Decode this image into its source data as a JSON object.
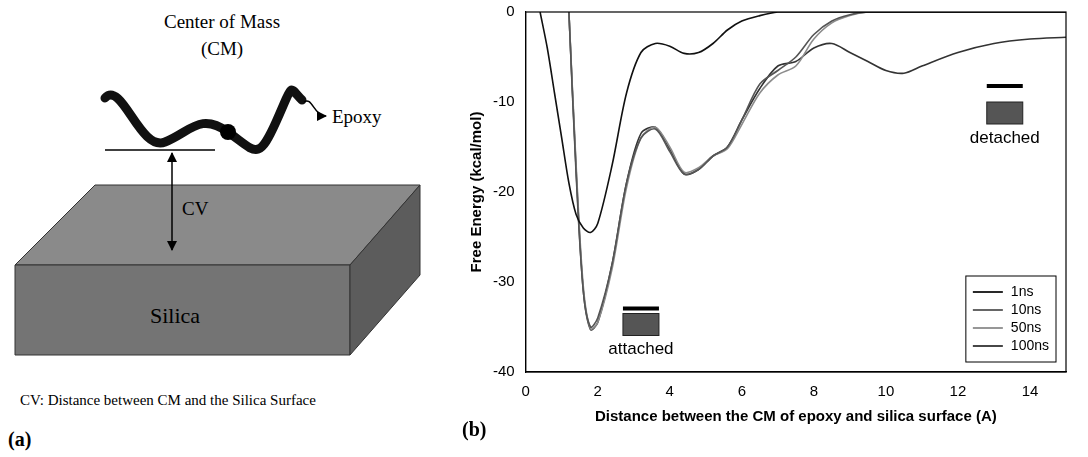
{
  "diagram": {
    "label": "(a)",
    "center_label": [
      "Center of Mass",
      "(CM)"
    ],
    "epoxy_label": "Epoxy",
    "cv_label": "CV",
    "slab_label": "Silica",
    "caption": "CV: Distance between CM and the Silica Surface"
  },
  "chart_data": {
    "type": "line",
    "panel_label": "(b)",
    "x_label": "Distance between the CM of epoxy and silica surface (A)",
    "y_label": "Free Energy (kcal/mol)",
    "x": [
      0.4,
      0.6,
      0.8,
      1.0,
      1.2,
      1.4,
      1.6,
      1.8,
      2.0,
      2.4,
      2.8,
      3.2,
      3.6,
      4.0,
      4.4,
      4.8,
      5.2,
      5.6,
      6.0,
      6.5,
      7.0,
      7.5,
      8.0,
      8.5,
      9.0,
      9.5,
      10.0,
      10.5,
      11.0,
      12.0,
      13.0,
      14.0,
      15.0
    ],
    "series": [
      {
        "name": "1ns",
        "color": "#111111",
        "values": [
          0,
          -4,
          -9,
          -14,
          -19,
          -22.5,
          -24,
          -24.5,
          -23.5,
          -17,
          -9,
          -4.5,
          -3.5,
          -3.8,
          -4.6,
          -4.5,
          -3.5,
          -2,
          -1,
          -0.4,
          0,
          0,
          0,
          0,
          0,
          0,
          0,
          0,
          0,
          0,
          0,
          0,
          0
        ]
      },
      {
        "name": "10ns",
        "color": "#555555",
        "values": [
          null,
          null,
          null,
          null,
          0,
          -18,
          -31,
          -35,
          -34,
          -28,
          -19,
          -14,
          -13,
          -15.5,
          -18,
          -17.5,
          -16,
          -15,
          -12,
          -8,
          -6.5,
          -5,
          -2.5,
          -1,
          -0.3,
          0,
          0,
          0,
          0,
          0,
          0,
          0,
          0
        ]
      },
      {
        "name": "50ns",
        "color": "#8c8c8c",
        "values": [
          null,
          null,
          null,
          null,
          0,
          -17,
          -30.5,
          -35.2,
          -34.5,
          -28.5,
          -19.5,
          -14,
          -12.8,
          -15,
          -17.8,
          -17.3,
          -16,
          -15.2,
          -12.5,
          -9,
          -7,
          -6,
          -3,
          -1.2,
          -0.4,
          0,
          0,
          0,
          0,
          0,
          0,
          0,
          0
        ]
      },
      {
        "name": "100ns",
        "color": "#333333",
        "values": [
          null,
          null,
          null,
          null,
          0,
          -17.5,
          -31,
          -35.3,
          -34.5,
          -28,
          -19,
          -13.5,
          -12.8,
          -15.2,
          -18,
          -17.5,
          -16,
          -15,
          -12,
          -8.5,
          -6,
          -5.5,
          -4,
          -3.5,
          -4.5,
          -5.5,
          -6.5,
          -6.8,
          -6,
          -4.5,
          -3.5,
          -3,
          -2.8
        ]
      }
    ],
    "xlim": [
      0,
      15
    ],
    "xticks": [
      0,
      2,
      4,
      6,
      8,
      10,
      12,
      14
    ],
    "ylim": [
      -40,
      0
    ],
    "yticks": [
      -40,
      -30,
      -20,
      -10,
      0
    ],
    "grid": false,
    "legend": "lower right",
    "annotations": [
      {
        "text": "attached",
        "x": 3.2,
        "y": -37.5
      },
      {
        "text": "detached",
        "x": 13.3,
        "y": -14
      }
    ]
  }
}
